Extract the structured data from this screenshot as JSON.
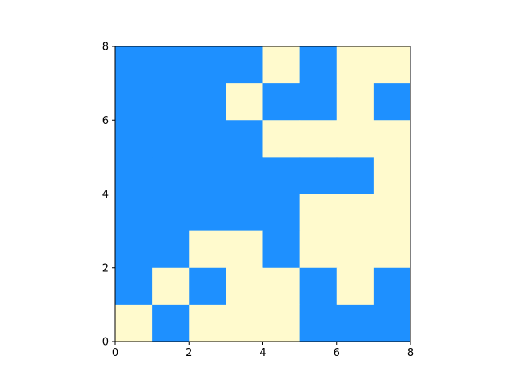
{
  "chart_data": {
    "type": "heatmap",
    "title": "",
    "xlabel": "",
    "ylabel": "",
    "xlim": [
      0,
      8
    ],
    "ylim": [
      0,
      8
    ],
    "x_ticks": [
      {
        "value": 0,
        "label": "0"
      },
      {
        "value": 2,
        "label": "2"
      },
      {
        "value": 4,
        "label": "4"
      },
      {
        "value": 6,
        "label": "6"
      },
      {
        "value": 8,
        "label": "8"
      }
    ],
    "y_ticks": [
      {
        "value": 0,
        "label": "0"
      },
      {
        "value": 2,
        "label": "2"
      },
      {
        "value": 4,
        "label": "4"
      },
      {
        "value": 6,
        "label": "6"
      },
      {
        "value": 8,
        "label": "8"
      }
    ],
    "grid": false,
    "colors": {
      "0": "#fffacd",
      "1": "#1e90ff"
    },
    "rows_top_to_bottom": [
      [
        1,
        1,
        1,
        1,
        0,
        1,
        0,
        0
      ],
      [
        1,
        1,
        1,
        0,
        1,
        1,
        0,
        1
      ],
      [
        1,
        1,
        1,
        1,
        0,
        0,
        0,
        0
      ],
      [
        1,
        1,
        1,
        1,
        1,
        1,
        1,
        0
      ],
      [
        1,
        1,
        1,
        1,
        1,
        0,
        0,
        0
      ],
      [
        1,
        1,
        0,
        0,
        1,
        0,
        0,
        0
      ],
      [
        1,
        0,
        1,
        0,
        0,
        1,
        0,
        1
      ],
      [
        0,
        1,
        0,
        0,
        0,
        1,
        1,
        1
      ]
    ]
  }
}
